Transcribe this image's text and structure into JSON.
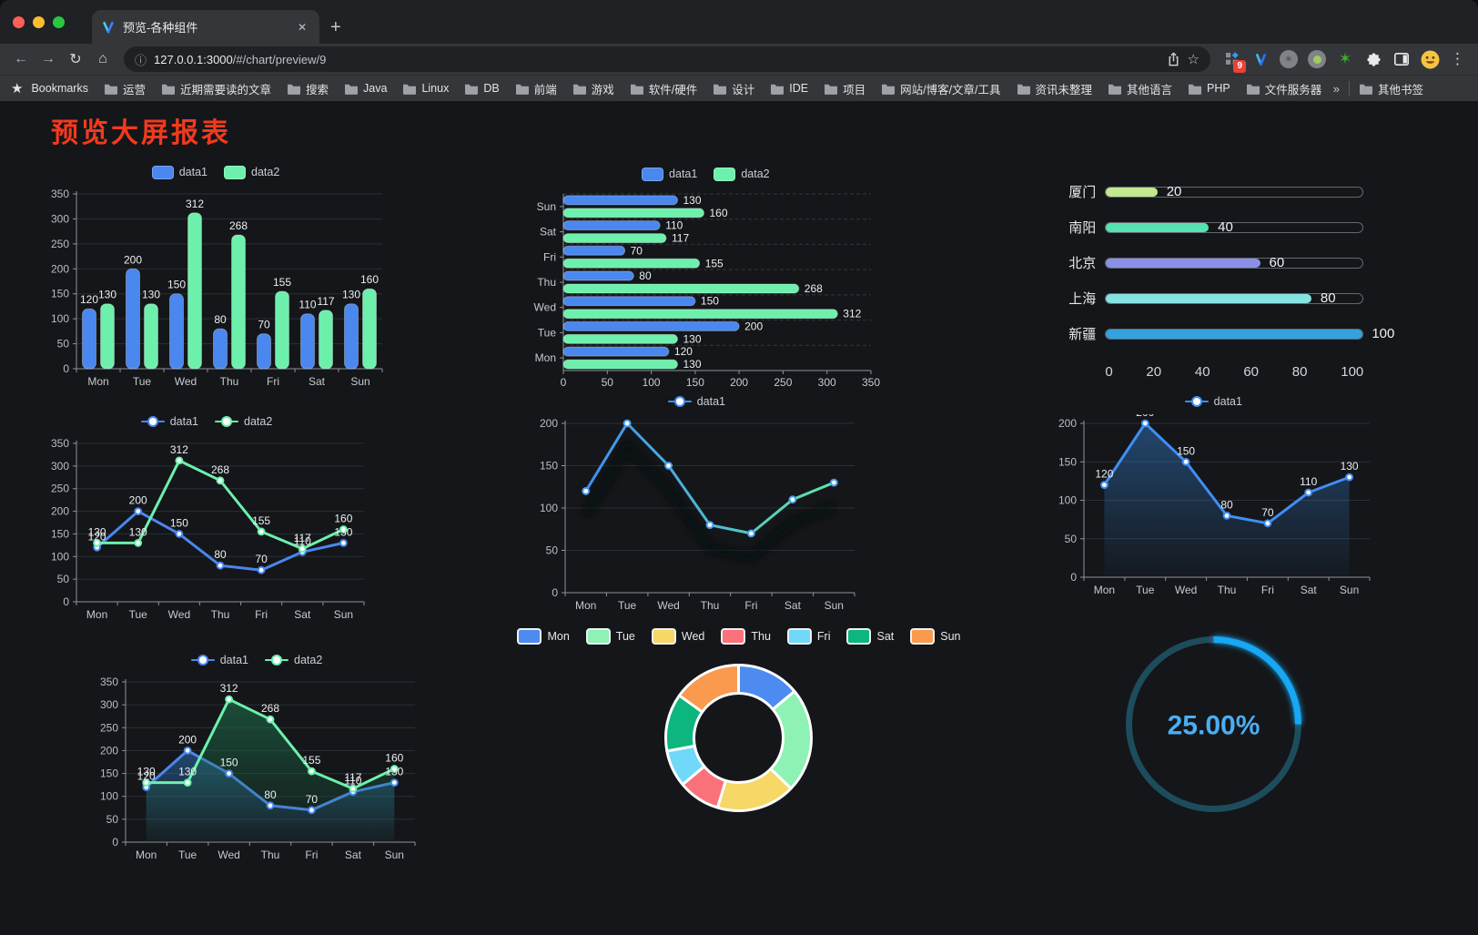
{
  "browser": {
    "tab_title": "预览-各种组件",
    "url_host": "127.0.0.1:3000",
    "url_path": "/#/chart/preview/9",
    "new_tab_label": "+",
    "close_tab_label": "✕",
    "extension_badge": "9",
    "bookmarks_label": "Bookmarks",
    "bookmarks": [
      "运营",
      "近期需要读的文章",
      "搜索",
      "Java",
      "Linux",
      "DB",
      "前端",
      "游戏",
      "软件/硬件",
      "设计",
      "IDE",
      "项目",
      "网站/博客/文章/工具",
      "资讯未整理",
      "其他语言",
      "PHP",
      "文件服务器"
    ],
    "bookmarks_overflow": "»",
    "other_bookmarks": "其他书签"
  },
  "page": {
    "title": "预览大屏报表",
    "title_color": "#f23a1d",
    "background": "#141619"
  },
  "chart_data": [
    {
      "name": "grouped-bar",
      "type": "bar",
      "legend_kind": "sw",
      "categories": [
        "Mon",
        "Tue",
        "Wed",
        "Thu",
        "Fri",
        "Sat",
        "Sun"
      ],
      "series": [
        {
          "name": "data1",
          "color": "#4a87ee",
          "values": [
            120,
            200,
            150,
            80,
            70,
            110,
            130
          ]
        },
        {
          "name": "data2",
          "color": "#6ef0ad",
          "values": [
            130,
            130,
            312,
            268,
            155,
            117,
            160
          ]
        }
      ],
      "ylim": [
        0,
        350
      ],
      "ystep": 50,
      "grid": true,
      "legend_position": "top"
    },
    {
      "name": "horizontal-bar",
      "type": "hbar",
      "legend_kind": "sw",
      "categories": [
        "Mon",
        "Tue",
        "Wed",
        "Thu",
        "Fri",
        "Sat",
        "Sun"
      ],
      "series": [
        {
          "name": "data1",
          "color": "#4a87ee",
          "values": [
            120,
            200,
            150,
            80,
            70,
            110,
            130
          ]
        },
        {
          "name": "data2",
          "color": "#6ef0ad",
          "values": [
            130,
            130,
            312,
            268,
            155,
            117,
            160
          ]
        }
      ],
      "xlim": [
        0,
        350
      ],
      "xstep": 50,
      "legend_position": "top"
    },
    {
      "name": "capsule-progress",
      "type": "capsule",
      "items": [
        {
          "label": "厦门",
          "value": 20,
          "color": "#c3e88d"
        },
        {
          "label": "南阳",
          "value": 40,
          "color": "#57e2b2"
        },
        {
          "label": "北京",
          "value": 60,
          "color": "#8b90e6"
        },
        {
          "label": "上海",
          "value": 80,
          "color": "#86e3e1"
        },
        {
          "label": "新疆",
          "value": 100,
          "color": "#35a2dd"
        }
      ],
      "xticks": [
        0,
        20,
        40,
        60,
        80,
        100
      ],
      "max": 100
    },
    {
      "name": "multi-line",
      "type": "line",
      "legend_kind": "dot",
      "labels": true,
      "categories": [
        "Mon",
        "Tue",
        "Wed",
        "Thu",
        "Fri",
        "Sat",
        "Sun"
      ],
      "series": [
        {
          "name": "data1",
          "color": "#4a87ee",
          "values": [
            120,
            200,
            150,
            80,
            70,
            110,
            130
          ]
        },
        {
          "name": "data2",
          "color": "#6ef0ad",
          "values": [
            130,
            130,
            312,
            268,
            155,
            117,
            160
          ]
        }
      ],
      "ylim": [
        0,
        350
      ],
      "ystep": 50,
      "legend_position": "top"
    },
    {
      "name": "gradient-line",
      "type": "line",
      "legend_kind": "dot",
      "labels": false,
      "categories": [
        "Mon",
        "Tue",
        "Wed",
        "Thu",
        "Fri",
        "Sat",
        "Sun"
      ],
      "series": [
        {
          "name": "data1",
          "color": "#3f8ef5",
          "gradient": [
            "#3f8ef5",
            "#5fe7a6"
          ],
          "shadow": true,
          "values": [
            120,
            200,
            150,
            80,
            70,
            110,
            130
          ]
        }
      ],
      "ylim": [
        0,
        200
      ],
      "ystep": 50,
      "legend_position": "top"
    },
    {
      "name": "area-line",
      "type": "line",
      "legend_kind": "dot",
      "labels": true,
      "categories": [
        "Mon",
        "Tue",
        "Wed",
        "Thu",
        "Fri",
        "Sat",
        "Sun"
      ],
      "series": [
        {
          "name": "data1",
          "color": "#3f8ef5",
          "fill": "#2f6fb4",
          "values": [
            120,
            200,
            150,
            80,
            70,
            110,
            130
          ]
        }
      ],
      "ylim": [
        0,
        200
      ],
      "ystep": 50,
      "legend_position": "top"
    },
    {
      "name": "double-area-line",
      "type": "line",
      "legend_kind": "dot",
      "labels": true,
      "categories": [
        "Mon",
        "Tue",
        "Wed",
        "Thu",
        "Fri",
        "Sat",
        "Sun"
      ],
      "series": [
        {
          "name": "data1",
          "color": "#4a87ee",
          "fill": "#2f6fb4",
          "values": [
            120,
            200,
            150,
            80,
            70,
            110,
            130
          ]
        },
        {
          "name": "data2",
          "color": "#6ef0ad",
          "fill": "#1f7a52",
          "values": [
            130,
            130,
            312,
            268,
            155,
            117,
            160
          ]
        }
      ],
      "ylim": [
        0,
        350
      ],
      "ystep": 50,
      "legend_position": "top"
    },
    {
      "name": "donut",
      "type": "donut",
      "items": [
        {
          "name": "Mon",
          "value": 120,
          "color": "#4e8bf0"
        },
        {
          "name": "Tue",
          "value": 200,
          "color": "#8df2b3"
        },
        {
          "name": "Wed",
          "value": 150,
          "color": "#f7d765"
        },
        {
          "name": "Thu",
          "value": 80,
          "color": "#fb7179"
        },
        {
          "name": "Fri",
          "value": 70,
          "color": "#70d8f9"
        },
        {
          "name": "Sat",
          "value": 110,
          "color": "#0db57f"
        },
        {
          "name": "Sun",
          "value": 130,
          "color": "#f99a4e"
        }
      ],
      "border_color": "#ffffff",
      "legend_position": "top"
    },
    {
      "name": "gauge",
      "type": "gauge",
      "label": "25.00%",
      "percent": 25,
      "color": "#17a8f4",
      "track": "#1d4d5c",
      "text_color": "#4aaef2"
    }
  ]
}
